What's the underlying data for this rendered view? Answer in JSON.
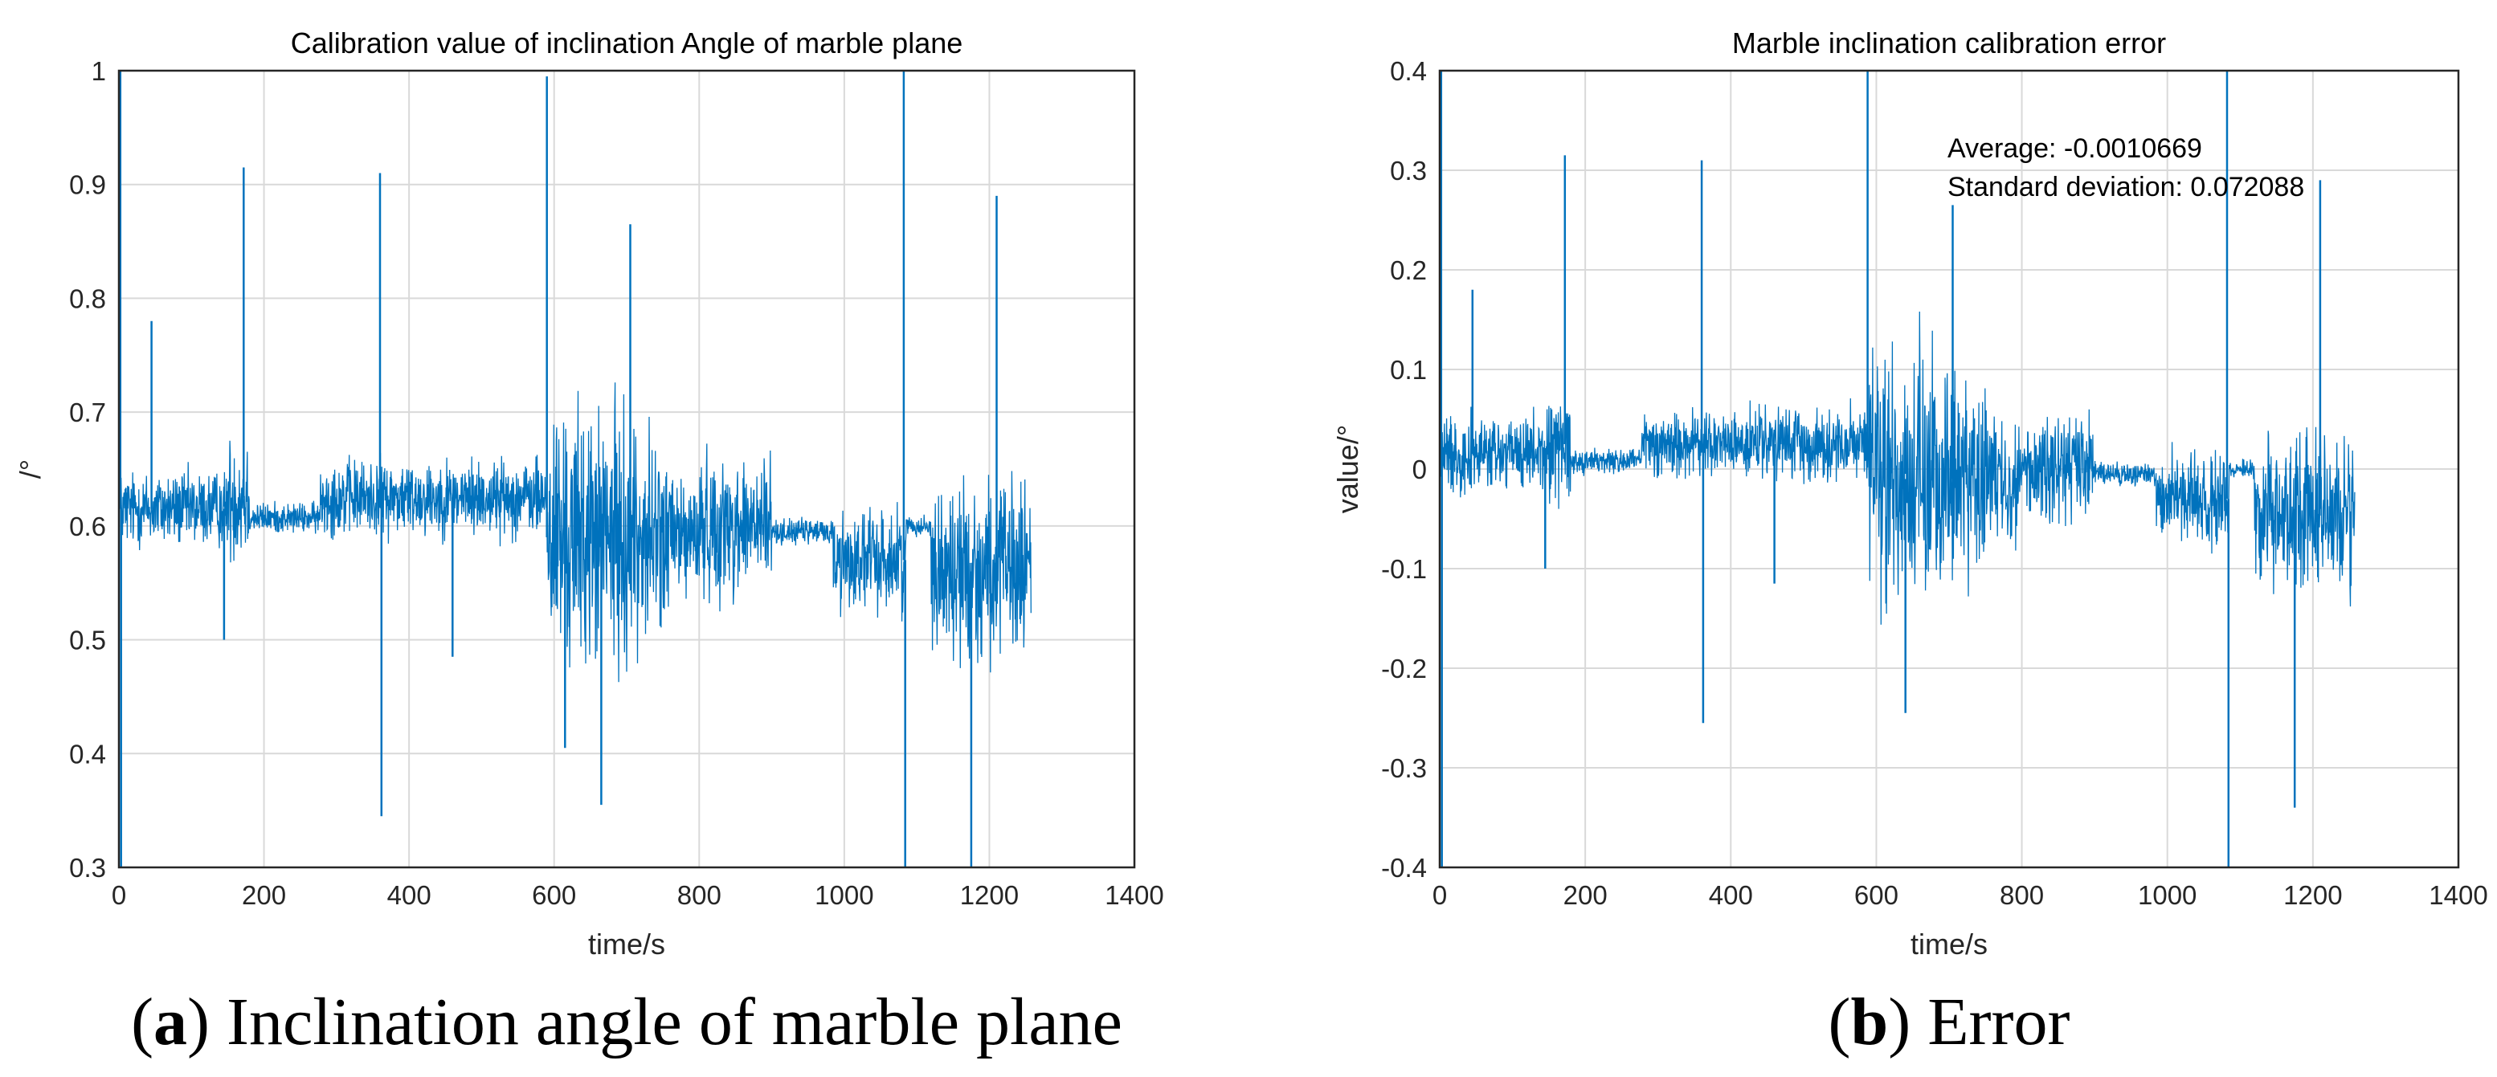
{
  "chart_data": [
    {
      "type": "line",
      "title": "Calibration value of inclination Angle of marble plane",
      "xlabel": "time/s",
      "ylabel": "/°",
      "xlim": [
        0,
        1400
      ],
      "ylim": [
        0.3,
        1
      ],
      "x_ticks": [
        "0",
        "200",
        "400",
        "600",
        "800",
        "1000",
        "1200",
        "1400"
      ],
      "y_ticks": [
        "0.3",
        "0.4",
        "0.5",
        "0.6",
        "0.7",
        "0.8",
        "0.9",
        "1"
      ],
      "grid": true,
      "color": "#0072BD",
      "series": [
        {
          "name": "inclination angle",
          "segments": [
            {
              "t0": 0,
              "t1": 150,
              "center": 0.615,
              "amp": 0.03
            },
            {
              "t0": 150,
              "t1": 180,
              "center": 0.625,
              "amp": 0.05
            },
            {
              "t0": 180,
              "t1": 278,
              "center": 0.607,
              "amp": 0.012
            },
            {
              "t0": 278,
              "t1": 590,
              "center": 0.625,
              "amp": 0.03
            },
            {
              "t0": 590,
              "t1": 800,
              "center": 0.59,
              "amp": 0.1
            },
            {
              "t0": 800,
              "t1": 900,
              "center": 0.6,
              "amp": 0.055
            },
            {
              "t0": 900,
              "t1": 985,
              "center": 0.595,
              "amp": 0.01
            },
            {
              "t0": 985,
              "t1": 1085,
              "center": 0.57,
              "amp": 0.04
            },
            {
              "t0": 1085,
              "t1": 1120,
              "center": 0.6,
              "amp": 0.008
            },
            {
              "t0": 1120,
              "t1": 1258,
              "center": 0.56,
              "amp": 0.07
            }
          ],
          "spikes": [
            {
              "t": 2,
              "v": 1.0
            },
            {
              "t": 3,
              "v": 0.3
            },
            {
              "t": 45,
              "v": 0.78
            },
            {
              "t": 145,
              "v": 0.5
            },
            {
              "t": 172,
              "v": 0.915
            },
            {
              "t": 360,
              "v": 0.91
            },
            {
              "t": 362,
              "v": 0.345
            },
            {
              "t": 460,
              "v": 0.485
            },
            {
              "t": 590,
              "v": 0.995
            },
            {
              "t": 615,
              "v": 0.405
            },
            {
              "t": 665,
              "v": 0.355
            },
            {
              "t": 705,
              "v": 0.865
            },
            {
              "t": 1082,
              "v": 1.0
            },
            {
              "t": 1084,
              "v": 0.3
            },
            {
              "t": 1175,
              "v": 0.3
            },
            {
              "t": 1210,
              "v": 0.89
            }
          ]
        }
      ],
      "caption": {
        "letter": "a",
        "text": "Inclination angle of marble plane"
      }
    },
    {
      "type": "line",
      "title": "Marble inclination calibration error",
      "xlabel": "time/s",
      "ylabel": "value/°",
      "xlim": [
        0,
        1400
      ],
      "ylim": [
        -0.4,
        0.4
      ],
      "x_ticks": [
        "0",
        "200",
        "400",
        "600",
        "800",
        "1000",
        "1200",
        "1400"
      ],
      "y_ticks": [
        "-0.4",
        "-0.3",
        "-0.2",
        "-0.1",
        "0",
        "0.1",
        "0.2",
        "0.3",
        "0.4"
      ],
      "grid": true,
      "color": "#0072BD",
      "annotations": [
        "Average: -0.0010669",
        "Standard deviation: 0.072088"
      ],
      "series": [
        {
          "name": "calibration error",
          "segments": [
            {
              "t0": 0,
              "t1": 150,
              "center": 0.015,
              "amp": 0.035
            },
            {
              "t0": 150,
              "t1": 180,
              "center": 0.025,
              "amp": 0.05
            },
            {
              "t0": 180,
              "t1": 278,
              "center": 0.008,
              "amp": 0.012
            },
            {
              "t0": 278,
              "t1": 590,
              "center": 0.025,
              "amp": 0.03
            },
            {
              "t0": 590,
              "t1": 800,
              "center": -0.01,
              "amp": 0.11
            },
            {
              "t0": 800,
              "t1": 900,
              "center": 0.0,
              "amp": 0.05
            },
            {
              "t0": 900,
              "t1": 985,
              "center": -0.005,
              "amp": 0.01
            },
            {
              "t0": 985,
              "t1": 1085,
              "center": -0.03,
              "amp": 0.04
            },
            {
              "t0": 1085,
              "t1": 1120,
              "center": 0.0,
              "amp": 0.008
            },
            {
              "t0": 1120,
              "t1": 1258,
              "center": -0.04,
              "amp": 0.07
            }
          ],
          "spikes": [
            {
              "t": 2,
              "v": 0.4
            },
            {
              "t": 3,
              "v": -0.4
            },
            {
              "t": 45,
              "v": 0.18
            },
            {
              "t": 145,
              "v": -0.1
            },
            {
              "t": 172,
              "v": 0.315
            },
            {
              "t": 360,
              "v": 0.31
            },
            {
              "t": 362,
              "v": -0.255
            },
            {
              "t": 460,
              "v": -0.115
            },
            {
              "t": 588,
              "v": 0.4
            },
            {
              "t": 640,
              "v": -0.245
            },
            {
              "t": 705,
              "v": 0.265
            },
            {
              "t": 1082,
              "v": 0.4
            },
            {
              "t": 1084,
              "v": -0.4
            },
            {
              "t": 1175,
              "v": -0.34
            },
            {
              "t": 1210,
              "v": 0.29
            }
          ]
        }
      ],
      "caption": {
        "letter": "b",
        "text": "Error"
      }
    }
  ]
}
